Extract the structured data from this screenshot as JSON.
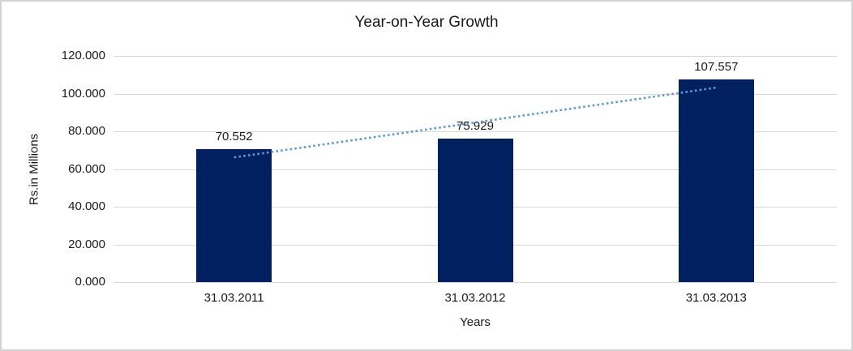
{
  "chart_data": {
    "type": "bar",
    "title": "Year-on-Year Growth",
    "xlabel": "Years",
    "ylabel": "Rs.in Millions",
    "categories": [
      "31.03.2011",
      "31.03.2012",
      "31.03.2013"
    ],
    "values": [
      70.552,
      75.929,
      107.557
    ],
    "data_labels": [
      "70.552",
      "75.929",
      "107.557"
    ],
    "ylim": [
      0,
      120
    ],
    "ytick_values": [
      0,
      20,
      40,
      60,
      80,
      100,
      120
    ],
    "ytick_labels": [
      "0.000",
      "20.000",
      "40.000",
      "60.000",
      "80.000",
      "100.000",
      "120.000"
    ],
    "grid": true,
    "legend": "none",
    "bar_color": "#002060",
    "gridline_color": "#d9d9d9",
    "axis_line_color": "#d9d9d9",
    "text_color": "#1a1a1a",
    "trendline": {
      "type": "linear",
      "style": "dotted",
      "color": "#5b9bd5"
    }
  }
}
